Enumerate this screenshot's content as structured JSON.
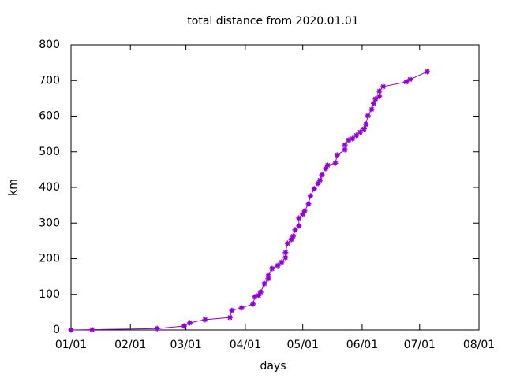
{
  "chart_data": {
    "type": "line",
    "title": "total distance from 2020.01.01",
    "x_label": "days",
    "y_label": "km",
    "x": [
      0,
      11,
      45,
      59,
      62,
      70,
      83,
      84,
      89,
      95,
      96,
      98,
      99,
      101,
      103,
      103,
      105,
      108,
      110,
      112,
      112,
      113,
      115,
      116,
      117,
      119,
      119,
      121,
      122,
      124,
      125,
      127,
      129,
      130,
      131,
      133,
      134,
      138,
      139,
      143,
      143,
      145,
      147,
      149,
      151,
      153,
      154,
      155,
      157,
      158,
      159,
      161,
      161,
      163,
      175,
      177,
      186
    ],
    "series": [
      {
        "color": "#9400d3",
        "values": [
          0,
          1,
          4,
          11,
          20,
          29,
          35,
          55,
          62,
          73,
          93,
          97,
          106,
          130,
          144,
          152,
          172,
          181,
          190,
          203,
          217,
          243,
          254,
          263,
          281,
          292,
          314,
          325,
          334,
          354,
          376,
          396,
          411,
          420,
          435,
          453,
          462,
          468,
          491,
          506,
          519,
          533,
          537,
          546,
          555,
          564,
          577,
          601,
          619,
          636,
          648,
          656,
          670,
          683,
          696,
          703,
          725
        ]
      }
    ],
    "xlim": [
      0,
      213
    ],
    "xticks": [
      {
        "value": 0,
        "label": "01/01"
      },
      {
        "value": 31,
        "label": "02/01"
      },
      {
        "value": 60,
        "label": "03/01"
      },
      {
        "value": 91,
        "label": "04/01"
      },
      {
        "value": 121,
        "label": "05/01"
      },
      {
        "value": 152,
        "label": "06/01"
      },
      {
        "value": 182,
        "label": "07/01"
      },
      {
        "value": 213,
        "label": "08/01"
      }
    ],
    "ylim": [
      0,
      800
    ],
    "yticks": [
      0,
      100,
      200,
      300,
      400,
      500,
      600,
      700,
      800
    ],
    "grid": false
  }
}
